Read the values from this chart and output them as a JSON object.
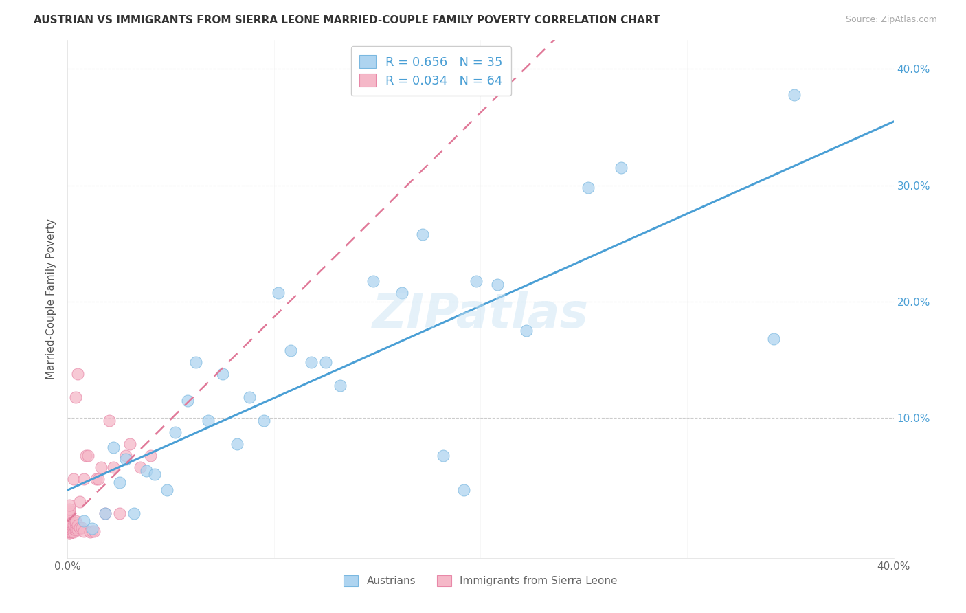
{
  "title": "AUSTRIAN VS IMMIGRANTS FROM SIERRA LEONE MARRIED-COUPLE FAMILY POVERTY CORRELATION CHART",
  "source": "Source: ZipAtlas.com",
  "ylabel": "Married-Couple Family Poverty",
  "xlim": [
    0.0,
    0.4
  ],
  "ylim": [
    -0.02,
    0.42
  ],
  "plot_ylim": [
    -0.02,
    0.42
  ],
  "xtick_vals": [
    0.0,
    0.1,
    0.2,
    0.3,
    0.4
  ],
  "xtick_labels": [
    "0.0%",
    "",
    "",
    "",
    "40.0%"
  ],
  "ytick_vals": [
    0.0,
    0.1,
    0.2,
    0.3,
    0.4
  ],
  "ytick_labels_right": [
    "",
    "10.0%",
    "20.0%",
    "30.0%",
    "40.0%"
  ],
  "grid_ytick_vals": [
    0.1,
    0.2,
    0.3,
    0.4
  ],
  "austrian_R": 0.656,
  "austrian_N": 35,
  "sierraleone_R": 0.034,
  "sierraleone_N": 64,
  "blue_scatter_color": "#aed4f0",
  "blue_edge_color": "#7ab8e0",
  "pink_scatter_color": "#f5b8c8",
  "pink_edge_color": "#e888a8",
  "blue_line_color": "#4a9fd5",
  "pink_line_color": "#e07898",
  "right_label_color": "#4a9fd5",
  "watermark": "ZIPatlas",
  "austrian_x": [
    0.008,
    0.012,
    0.018,
    0.022,
    0.025,
    0.028,
    0.032,
    0.038,
    0.042,
    0.048,
    0.052,
    0.058,
    0.062,
    0.068,
    0.075,
    0.082,
    0.088,
    0.095,
    0.102,
    0.108,
    0.118,
    0.125,
    0.132,
    0.148,
    0.162,
    0.172,
    0.182,
    0.192,
    0.198,
    0.208,
    0.222,
    0.252,
    0.268,
    0.342,
    0.352
  ],
  "austrian_y": [
    0.012,
    0.005,
    0.018,
    0.075,
    0.045,
    0.065,
    0.018,
    0.055,
    0.052,
    0.038,
    0.088,
    0.115,
    0.148,
    0.098,
    0.138,
    0.078,
    0.118,
    0.098,
    0.208,
    0.158,
    0.148,
    0.148,
    0.128,
    0.218,
    0.208,
    0.258,
    0.068,
    0.038,
    0.218,
    0.215,
    0.175,
    0.298,
    0.315,
    0.168,
    0.378
  ],
  "sierraleone_x": [
    0.001,
    0.001,
    0.001,
    0.001,
    0.001,
    0.001,
    0.001,
    0.001,
    0.001,
    0.001,
    0.001,
    0.001,
    0.001,
    0.001,
    0.001,
    0.001,
    0.001,
    0.001,
    0.001,
    0.001,
    0.001,
    0.001,
    0.001,
    0.001,
    0.001,
    0.001,
    0.002,
    0.002,
    0.002,
    0.002,
    0.002,
    0.003,
    0.003,
    0.003,
    0.003,
    0.004,
    0.004,
    0.004,
    0.004,
    0.004,
    0.005,
    0.005,
    0.005,
    0.006,
    0.006,
    0.007,
    0.008,
    0.008,
    0.009,
    0.01,
    0.011,
    0.012,
    0.013,
    0.014,
    0.015,
    0.016,
    0.018,
    0.02,
    0.022,
    0.025,
    0.028,
    0.03,
    0.035,
    0.04
  ],
  "sierraleone_y": [
    0.001,
    0.001,
    0.002,
    0.003,
    0.003,
    0.004,
    0.004,
    0.005,
    0.005,
    0.006,
    0.006,
    0.007,
    0.008,
    0.008,
    0.009,
    0.01,
    0.01,
    0.012,
    0.013,
    0.014,
    0.015,
    0.016,
    0.018,
    0.02,
    0.022,
    0.025,
    0.002,
    0.004,
    0.006,
    0.008,
    0.01,
    0.002,
    0.005,
    0.008,
    0.048,
    0.004,
    0.006,
    0.01,
    0.012,
    0.118,
    0.004,
    0.008,
    0.138,
    0.006,
    0.028,
    0.006,
    0.048,
    0.003,
    0.068,
    0.068,
    0.002,
    0.003,
    0.003,
    0.048,
    0.048,
    0.058,
    0.018,
    0.098,
    0.058,
    0.018,
    0.068,
    0.078,
    0.058,
    0.068
  ]
}
